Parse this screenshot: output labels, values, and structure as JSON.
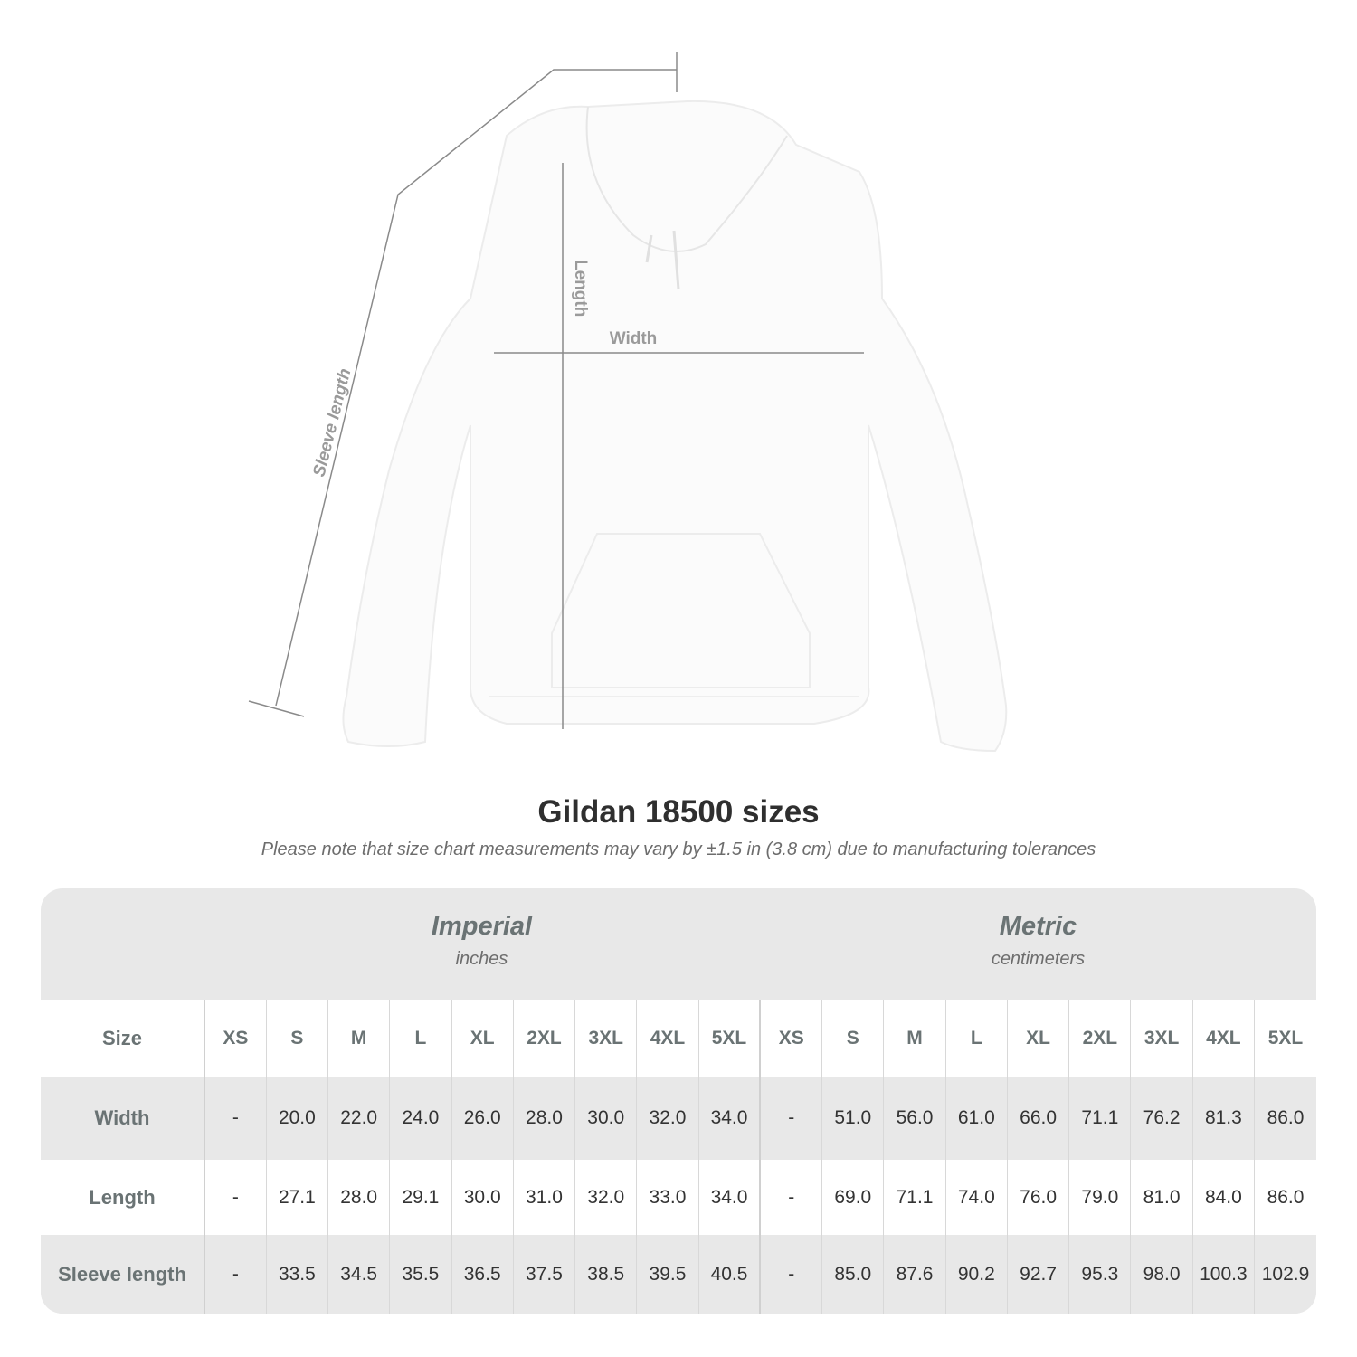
{
  "figure": {
    "labels": {
      "sleeve": "Sleeve length",
      "length": "Length",
      "width": "Width"
    },
    "garment_color": "#ffffff"
  },
  "title": "Gildan 18500 sizes",
  "note": "Please note that size chart measurements may vary by ±1.5 in (3.8 cm) due to manufacturing tolerances",
  "table": {
    "imperial": {
      "name": "Imperial",
      "unit": "inches"
    },
    "metric": {
      "name": "Metric",
      "unit": "centimeters"
    },
    "size_label": "Size",
    "sizes": [
      "XS",
      "S",
      "M",
      "L",
      "XL",
      "2XL",
      "3XL",
      "4XL",
      "5XL"
    ],
    "rows": [
      {
        "label": "Width",
        "imperial": [
          "-",
          "20.0",
          "22.0",
          "24.0",
          "26.0",
          "28.0",
          "30.0",
          "32.0",
          "34.0"
        ],
        "metric": [
          "-",
          "51.0",
          "56.0",
          "61.0",
          "66.0",
          "71.1",
          "76.2",
          "81.3",
          "86.0"
        ]
      },
      {
        "label": "Length",
        "imperial": [
          "-",
          "27.1",
          "28.0",
          "29.1",
          "30.0",
          "31.0",
          "32.0",
          "33.0",
          "34.0"
        ],
        "metric": [
          "-",
          "69.0",
          "71.1",
          "74.0",
          "76.0",
          "79.0",
          "81.0",
          "84.0",
          "86.0"
        ]
      },
      {
        "label": "Sleeve length",
        "imperial": [
          "-",
          "33.5",
          "34.5",
          "35.5",
          "36.5",
          "37.5",
          "38.5",
          "39.5",
          "40.5"
        ],
        "metric": [
          "-",
          "85.0",
          "87.6",
          "90.2",
          "92.7",
          "95.3",
          "98.0",
          "100.3",
          "102.9"
        ]
      }
    ]
  }
}
